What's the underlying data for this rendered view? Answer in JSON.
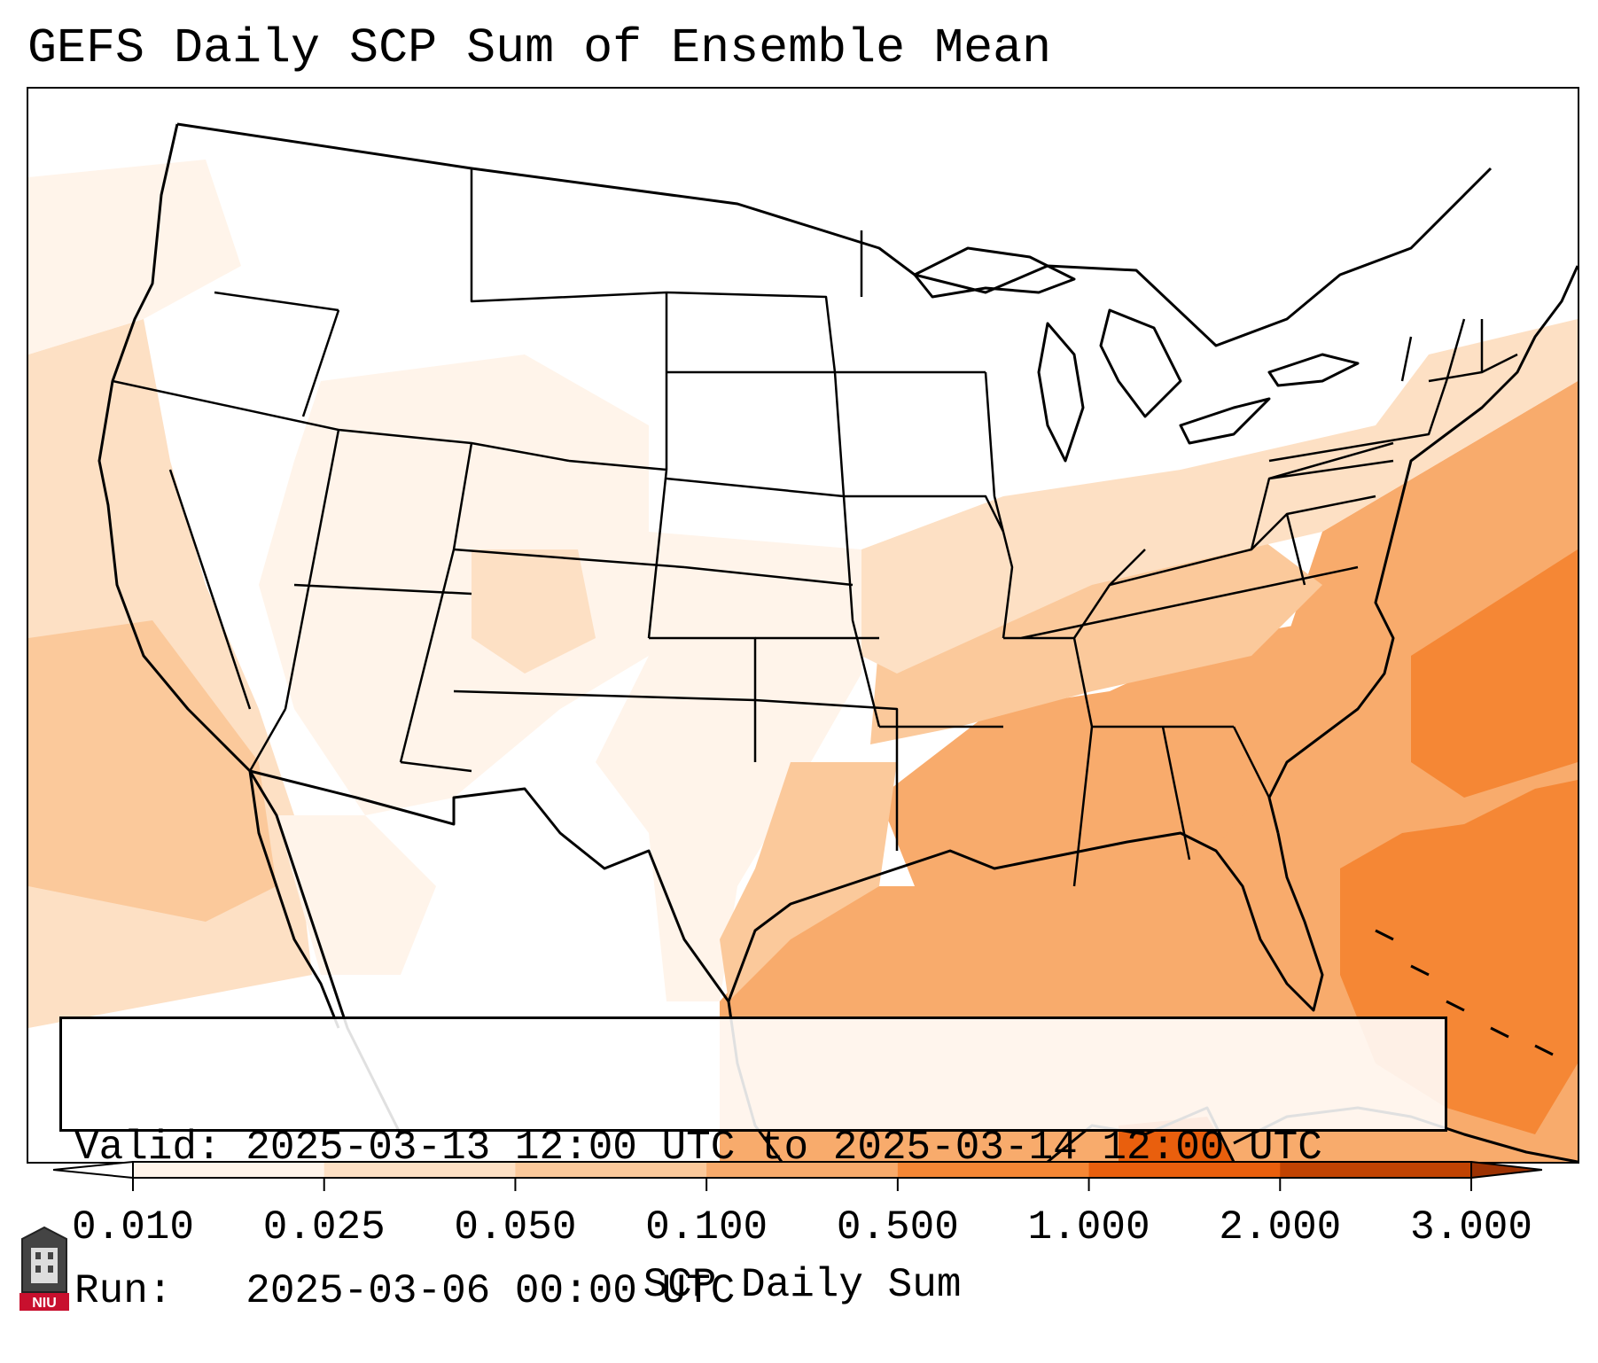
{
  "title": "GEFS Daily SCP Sum of Ensemble Mean",
  "info": {
    "valid_line": "Valid: 2025-03-13 12:00 UTC to 2025-03-14 12:00 UTC",
    "run_line": "Run:   2025-03-06 00:00 UTC"
  },
  "colorbar": {
    "label": "SCP Daily Sum",
    "ticks": [
      "0.010",
      "0.025",
      "0.050",
      "0.100",
      "0.500",
      "1.000",
      "2.000",
      "3.000"
    ],
    "colors": [
      "#fff4ea",
      "#fde0c4",
      "#fbc99b",
      "#f8ab6c",
      "#f58735",
      "#e95f0d",
      "#c14302"
    ],
    "extend": "both",
    "lower_extend_color": "#ffffff",
    "upper_extend_color": "#9c3203"
  },
  "shading_colors": {
    "none": "#ffffff",
    "very_light": "#fff4ea",
    "light": "#fde0c4",
    "medium_light": "#fbc99b",
    "medium": "#f8ab6c",
    "strong": "#f58735",
    "very_strong": "#e95f0d"
  },
  "logo": {
    "text": "NIU",
    "color": "#c8102e"
  }
}
